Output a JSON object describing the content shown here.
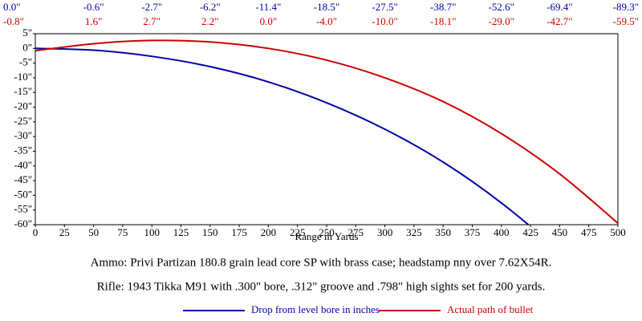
{
  "chart_data": {
    "type": "line",
    "x_label": "Range in Yards",
    "notes": [
      "Ammo:  Privi Partizan 180.8 grain lead core SP with brass case; headstamp nny over 7.62X54R.",
      "Rifle:  1943 Tikka M91 with .300\" bore, .312\" groove and .798\" high sights set for 200 yards."
    ],
    "x": [
      0,
      50,
      100,
      150,
      200,
      250,
      300,
      350,
      400,
      450,
      500
    ],
    "series": [
      {
        "name": "Drop from level bore in inches",
        "color": "#0000aa",
        "values": [
          0.0,
          -0.6,
          -2.7,
          -6.2,
          -11.4,
          -18.5,
          -27.5,
          -38.7,
          -52.6,
          -69.4,
          -89.3
        ],
        "value_labels": [
          "0.0\"",
          "-0.6\"",
          "-2.7\"",
          "-6.2\"",
          "-11.4\"",
          "-18.5\"",
          "-27.5\"",
          "-38.7\"",
          "-52.6\"",
          "-69.4\"",
          "-89.3\""
        ]
      },
      {
        "name": "Actual path of bullet",
        "color": "#cc0000",
        "values": [
          -0.8,
          1.6,
          2.7,
          2.2,
          0.0,
          -4.0,
          -10.0,
          -18.1,
          -29.0,
          -42.7,
          -59.5
        ],
        "value_labels": [
          "-0.8\"",
          "1.6\"",
          "2.7\"",
          "2.2\"",
          "0.0\"",
          "-4.0\"",
          "-10.0\"",
          "-18.1\"",
          "-29.0\"",
          "-42.7\"",
          "-59.5\""
        ]
      }
    ],
    "xlim": [
      0,
      500
    ],
    "xticks": [
      0,
      25,
      50,
      75,
      100,
      125,
      150,
      175,
      200,
      225,
      250,
      275,
      300,
      325,
      350,
      375,
      400,
      425,
      450,
      475,
      500
    ],
    "ylim": [
      -60,
      5
    ],
    "yticks": [
      {
        "value": 5,
        "label": "5\""
      },
      {
        "value": 0,
        "label": "0\""
      },
      {
        "value": -5,
        "label": "-5\""
      },
      {
        "value": -10,
        "label": "-10\""
      },
      {
        "value": -15,
        "label": "-15\""
      },
      {
        "value": -20,
        "label": "-20\""
      },
      {
        "value": -25,
        "label": "-25\""
      },
      {
        "value": -30,
        "label": "-30\""
      },
      {
        "value": -35,
        "label": "-35\""
      },
      {
        "value": -40,
        "label": "-40\""
      },
      {
        "value": -45,
        "label": "-45\""
      },
      {
        "value": -50,
        "label": "-50\""
      },
      {
        "value": -55,
        "label": "-55\""
      },
      {
        "value": -60,
        "label": "-60\""
      }
    ],
    "grid": false
  }
}
